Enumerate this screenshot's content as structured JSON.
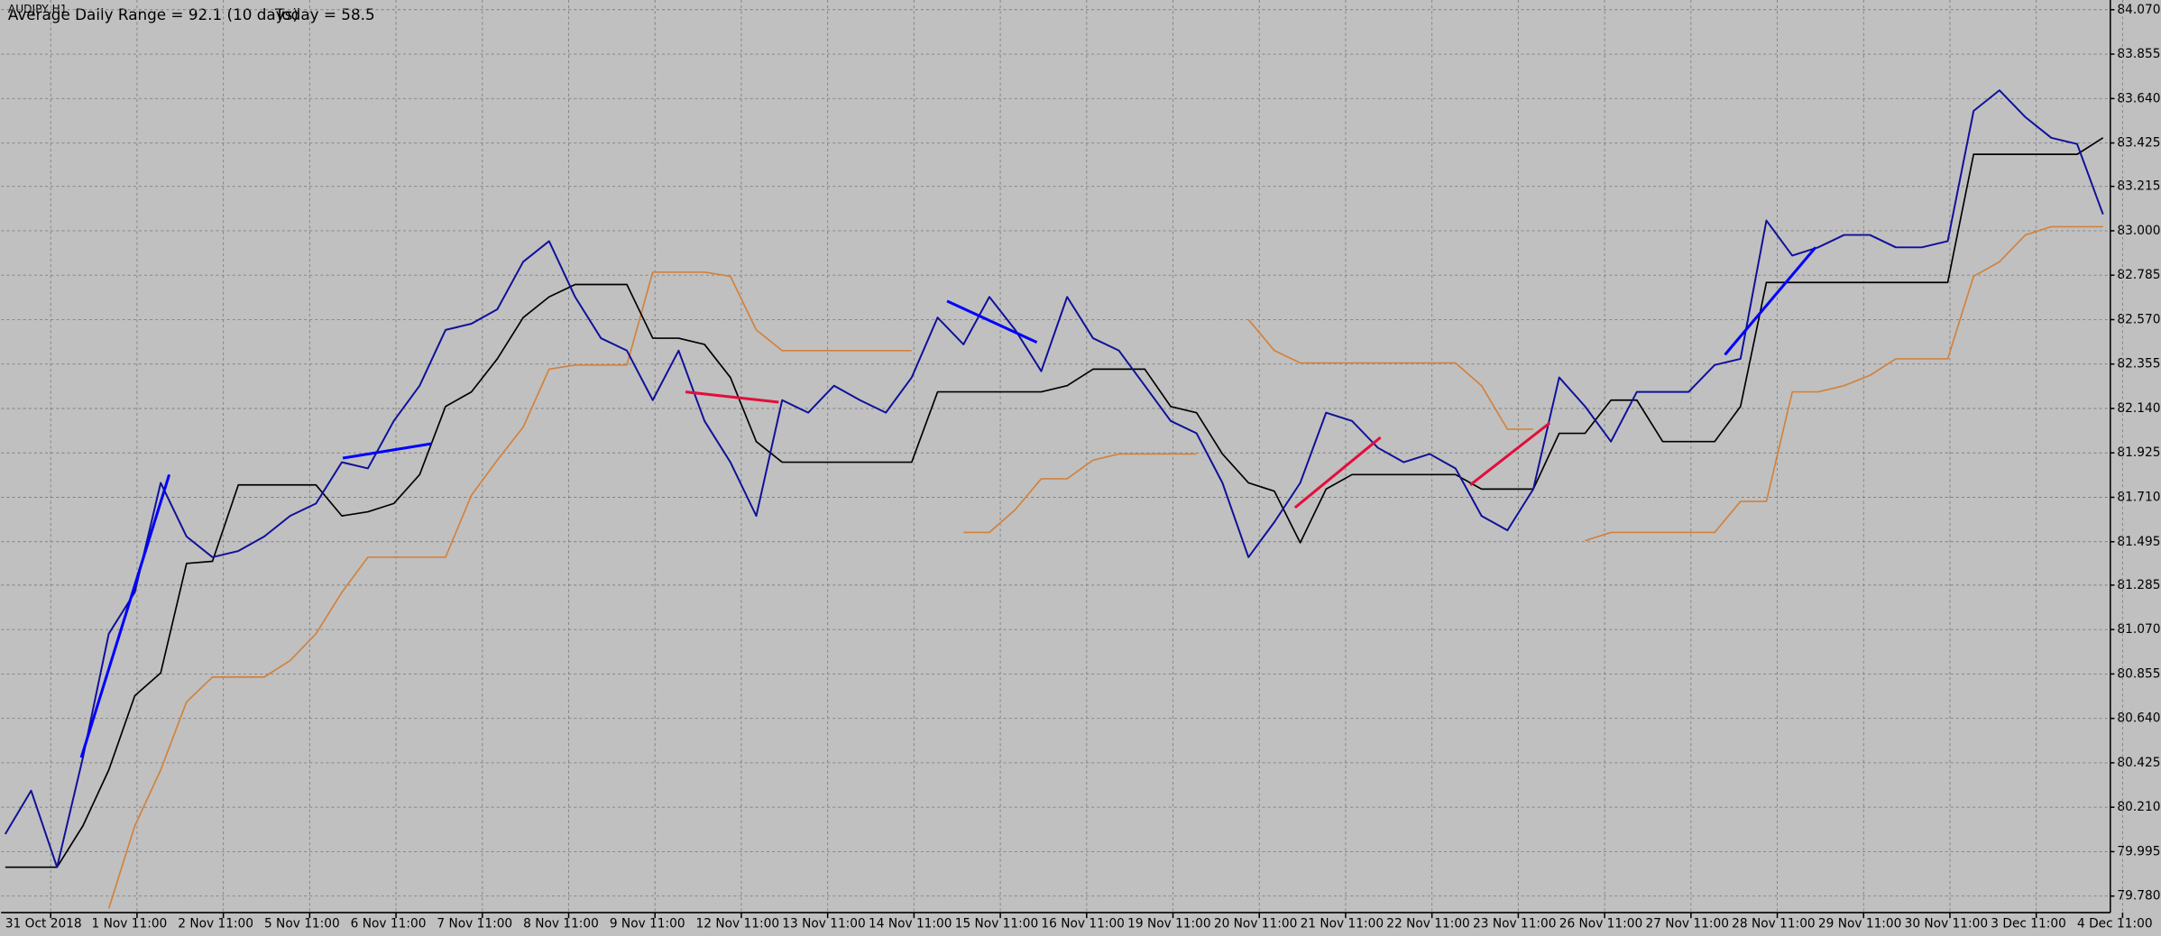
{
  "chart_data": {
    "type": "line",
    "symbol": "AUDJPY,H1",
    "info": [
      "Average Daily Range = 92.1 (10 days)",
      "Today = 58.5"
    ],
    "info_color": "#0000ff",
    "background": "#c0c0c0",
    "grid": true,
    "x": [
      0,
      3,
      6,
      9,
      12,
      15,
      18,
      21,
      24,
      27,
      30,
      33,
      36,
      39,
      42,
      45,
      48,
      51,
      54,
      57,
      60,
      63,
      66,
      69,
      72,
      75,
      78,
      81,
      84,
      87,
      90,
      93,
      96,
      99,
      102,
      105,
      108,
      111,
      114,
      117,
      120,
      123,
      126,
      129,
      132,
      135,
      138,
      141,
      144,
      147,
      150,
      153,
      156,
      159,
      162,
      165,
      168,
      171,
      174,
      177,
      180,
      183,
      186,
      189,
      192,
      195,
      198,
      201,
      204,
      207,
      210,
      213,
      216,
      219,
      222,
      225,
      228,
      231,
      234,
      237,
      240,
      243
    ],
    "xlim": [
      0,
      244
    ],
    "xticks": [
      {
        "value": 0,
        "label": "31 Oct 2018"
      },
      {
        "value": 10,
        "label": "1 Nov 11:00"
      },
      {
        "value": 20,
        "label": "2 Nov 11:00"
      },
      {
        "value": 30,
        "label": "5 Nov 11:00"
      },
      {
        "value": 40,
        "label": "6 Nov 11:00"
      },
      {
        "value": 50,
        "label": "7 Nov 11:00"
      },
      {
        "value": 60,
        "label": "8 Nov 11:00"
      },
      {
        "value": 70,
        "label": "9 Nov 11:00"
      },
      {
        "value": 80,
        "label": "12 Nov 11:00"
      },
      {
        "value": 90,
        "label": "13 Nov 11:00"
      },
      {
        "value": 100,
        "label": "14 Nov 11:00"
      },
      {
        "value": 110,
        "label": "15 Nov 11:00"
      },
      {
        "value": 120,
        "label": "16 Nov 11:00"
      },
      {
        "value": 130,
        "label": "19 Nov 11:00"
      },
      {
        "value": 140,
        "label": "20 Nov 11:00"
      },
      {
        "value": 150,
        "label": "21 Nov 11:00"
      },
      {
        "value": 160,
        "label": "22 Nov 11:00"
      },
      {
        "value": 170,
        "label": "23 Nov 11:00"
      },
      {
        "value": 180,
        "label": "26 Nov 11:00"
      },
      {
        "value": 190,
        "label": "27 Nov 11:00"
      },
      {
        "value": 200,
        "label": "28 Nov 11:00"
      },
      {
        "value": 210,
        "label": "29 Nov 11:00"
      },
      {
        "value": 220,
        "label": "30 Nov 11:00"
      },
      {
        "value": 230,
        "label": "3 Dec 11:00"
      },
      {
        "value": 240,
        "label": "4 Dec 11:00"
      }
    ],
    "ylim": [
      79.7,
      84.117
    ],
    "yticks": [
      {
        "value": 84.07,
        "label": "84.070"
      },
      {
        "value": 83.855,
        "label": "83.855"
      },
      {
        "value": 83.64,
        "label": "83.640"
      },
      {
        "value": 83.425,
        "label": "83.425"
      },
      {
        "value": 83.215,
        "label": "83.215"
      },
      {
        "value": 83.0,
        "label": "83.000"
      },
      {
        "value": 82.785,
        "label": "82.785"
      },
      {
        "value": 82.57,
        "label": "82.570"
      },
      {
        "value": 82.355,
        "label": "82.355"
      },
      {
        "value": 82.14,
        "label": "82.140"
      },
      {
        "value": 81.925,
        "label": "81.925"
      },
      {
        "value": 81.71,
        "label": "81.710"
      },
      {
        "value": 81.495,
        "label": "81.495"
      },
      {
        "value": 81.285,
        "label": "81.285"
      },
      {
        "value": 81.07,
        "label": "81.070"
      },
      {
        "value": 80.855,
        "label": "80.855"
      },
      {
        "value": 80.64,
        "label": "80.640"
      },
      {
        "value": 80.425,
        "label": "80.425"
      },
      {
        "value": 80.21,
        "label": "80.210"
      },
      {
        "value": 79.995,
        "label": "79.995"
      },
      {
        "value": 79.78,
        "label": "79.780"
      }
    ],
    "series": [
      {
        "color": "#10109a",
        "values": [
          80.08,
          80.29,
          79.92,
          80.45,
          81.05,
          81.25,
          81.78,
          81.52,
          81.42,
          81.45,
          81.52,
          81.62,
          81.68,
          81.88,
          81.85,
          82.08,
          82.25,
          82.52,
          82.55,
          82.62,
          82.85,
          82.95,
          82.68,
          82.48,
          82.42,
          82.18,
          82.42,
          82.08,
          81.88,
          81.62,
          82.18,
          82.12,
          82.25,
          82.18,
          82.12,
          82.29,
          82.58,
          82.45,
          82.68,
          82.52,
          82.32,
          82.68,
          82.48,
          82.42,
          82.25,
          82.08,
          82.02,
          81.78,
          81.42,
          81.59,
          81.78,
          82.12,
          82.08,
          81.95,
          81.88,
          81.92,
          81.85,
          81.62,
          81.55,
          81.75,
          82.29,
          82.15,
          81.98,
          82.22,
          82.22,
          82.22,
          82.35,
          82.38,
          83.05,
          82.88,
          82.92,
          82.98,
          82.98,
          82.92,
          82.92,
          82.95,
          83.58,
          83.68,
          83.55,
          83.45,
          83.42,
          83.08
        ]
      },
      {
        "color": "#000000",
        "values": [
          79.92,
          79.92,
          79.92,
          80.12,
          80.39,
          80.75,
          80.86,
          81.39,
          81.4,
          81.77,
          81.77,
          81.77,
          81.77,
          81.62,
          81.64,
          81.68,
          81.82,
          82.15,
          82.22,
          82.38,
          82.58,
          82.68,
          82.74,
          82.74,
          82.74,
          82.48,
          82.48,
          82.45,
          82.29,
          81.98,
          81.88,
          81.88,
          81.88,
          81.88,
          81.88,
          81.88,
          82.22,
          82.22,
          82.22,
          82.22,
          82.22,
          82.25,
          82.33,
          82.33,
          82.33,
          82.15,
          82.12,
          81.92,
          81.78,
          81.74,
          81.49,
          81.75,
          81.82,
          81.82,
          81.82,
          81.82,
          81.82,
          81.75,
          81.75,
          81.75,
          82.02,
          82.02,
          82.18,
          82.18,
          81.98,
          81.98,
          81.98,
          82.15,
          82.75,
          82.75,
          82.75,
          82.75,
          82.75,
          82.75,
          82.75,
          82.75,
          83.37,
          83.37,
          83.37,
          83.37,
          83.37,
          83.45
        ]
      },
      {
        "color": "#d2823c",
        "values": [
          null,
          null,
          null,
          null,
          79.72,
          80.12,
          80.39,
          80.72,
          80.84,
          80.84,
          80.84,
          80.92,
          81.05,
          81.25,
          81.42,
          81.42,
          81.42,
          81.42,
          81.72,
          81.89,
          82.05,
          82.33,
          82.35,
          82.35,
          82.35,
          82.8,
          82.8,
          82.8,
          82.78,
          82.52,
          82.42,
          82.42,
          82.42,
          82.42,
          82.42,
          82.42,
          null,
          81.54,
          81.54,
          81.65,
          81.8,
          81.8,
          81.89,
          81.92,
          81.92,
          81.92,
          81.92,
          null,
          82.57,
          82.42,
          82.36,
          82.36,
          82.36,
          82.36,
          82.36,
          82.36,
          82.36,
          82.25,
          82.04,
          82.04,
          null,
          81.5,
          81.54,
          81.54,
          81.54,
          81.54,
          81.54,
          81.69,
          81.69,
          82.22,
          82.22,
          82.25,
          82.3,
          82.38,
          82.38,
          82.38,
          82.78,
          82.85,
          82.98,
          83.02,
          83.02,
          83.02
        ]
      }
    ],
    "trend_lines": [
      {
        "color": "#0000ff",
        "x": [
          8.8,
          19.0
        ],
        "values": [
          80.45,
          81.82
        ]
      },
      {
        "color": "#0000ff",
        "x": [
          39.1,
          49.4
        ],
        "values": [
          81.9,
          81.97
        ]
      },
      {
        "color": "#e0103c",
        "x": [
          78.8,
          89.6
        ],
        "values": [
          82.22,
          82.17
        ]
      },
      {
        "color": "#0000ff",
        "x": [
          109.1,
          119.5
        ],
        "values": [
          82.66,
          82.46
        ]
      },
      {
        "color": "#e0103c",
        "x": [
          149.4,
          159.3
        ],
        "values": [
          81.66,
          82.0
        ]
      },
      {
        "color": "#e0103c",
        "x": [
          169.7,
          178.9
        ],
        "values": [
          81.77,
          82.07
        ]
      },
      {
        "color": "#0000ff",
        "x": [
          199.2,
          209.7
        ],
        "values": [
          82.4,
          82.92
        ]
      }
    ]
  }
}
